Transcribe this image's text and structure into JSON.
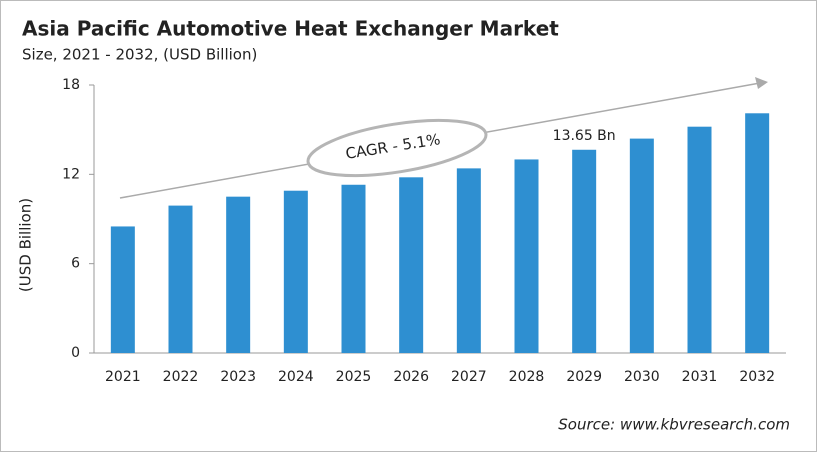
{
  "chart_data": {
    "type": "bar",
    "title": "Asia Pacific Automotive Heat Exchanger Market",
    "subtitle": "Size, 2021 - 2032, (USD Billion)",
    "y_label": "(USD Billion)",
    "annotation": "CAGR - 5.1%",
    "source": "Source: www.kbvresearch.com",
    "categories": [
      "2021",
      "2022",
      "2023",
      "2024",
      "2025",
      "2026",
      "2027",
      "2028",
      "2029",
      "2030",
      "2031",
      "2032"
    ],
    "values": [
      8.5,
      9.9,
      10.5,
      10.9,
      11.3,
      11.8,
      12.4,
      13.0,
      13.65,
      14.4,
      15.2,
      16.1
    ],
    "value_labels": [
      null,
      null,
      null,
      null,
      null,
      null,
      null,
      null,
      "13.65 Bn",
      null,
      null,
      null
    ],
    "color": "#2e8fd1",
    "ylim": [
      0,
      18
    ],
    "yticks": [
      0,
      6,
      12,
      18
    ],
    "grid": false
  }
}
